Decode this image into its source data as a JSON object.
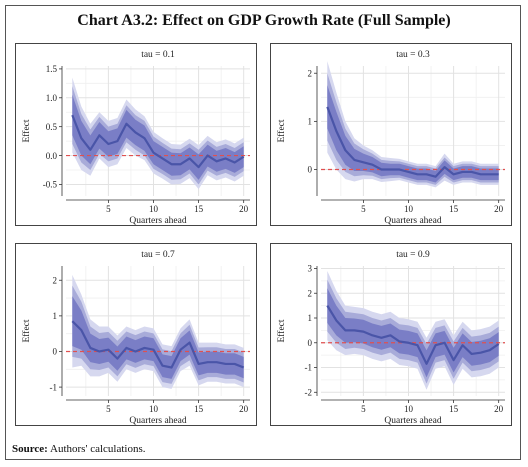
{
  "title": "Chart A3.2: Effect on GDP Growth Rate (Full Sample)",
  "source_label": "Source:",
  "source_text": "Authors' calculations.",
  "colors": {
    "median": "#4a55a8",
    "band_outer": "#d6d8ef",
    "band_mid": "#a8abd9",
    "band_inner": "#7a7ec6",
    "zero_line": "#e05050"
  },
  "chart_data": [
    {
      "type": "line",
      "title": "tau = 0.1",
      "xlabel": "Quarters ahead",
      "ylabel": "Effect",
      "xlim": [
        0.3,
        20.7
      ],
      "ylim": [
        -0.7,
        1.55
      ],
      "xticks": [
        5,
        10,
        15,
        20
      ],
      "yticks": [
        -0.5,
        0.0,
        0.5,
        1.0,
        1.5
      ],
      "ytick_labels": [
        "-0.5",
        "0.0",
        "0.5",
        "1.0",
        "1.5"
      ],
      "grid": true,
      "x": [
        1,
        2,
        3,
        4,
        5,
        6,
        7,
        8,
        9,
        10,
        11,
        12,
        13,
        14,
        15,
        16,
        17,
        18,
        19,
        20
      ],
      "median": [
        0.7,
        0.3,
        0.1,
        0.35,
        0.2,
        0.25,
        0.55,
        0.4,
        0.3,
        0.05,
        -0.05,
        -0.15,
        -0.15,
        -0.05,
        -0.2,
        0.0,
        -0.1,
        -0.05,
        -0.12,
        -0.02
      ],
      "band_width": [
        [
          0.65,
          0.5,
          0.35
        ],
        [
          0.55,
          0.42,
          0.3
        ],
        [
          0.45,
          0.35,
          0.25
        ],
        [
          0.4,
          0.32,
          0.23
        ],
        [
          0.4,
          0.3,
          0.22
        ],
        [
          0.4,
          0.3,
          0.22
        ],
        [
          0.42,
          0.32,
          0.24
        ],
        [
          0.4,
          0.3,
          0.22
        ],
        [
          0.38,
          0.3,
          0.22
        ],
        [
          0.36,
          0.28,
          0.2
        ],
        [
          0.35,
          0.27,
          0.2
        ],
        [
          0.35,
          0.27,
          0.2
        ],
        [
          0.34,
          0.26,
          0.19
        ],
        [
          0.34,
          0.26,
          0.19
        ],
        [
          0.38,
          0.3,
          0.22
        ],
        [
          0.34,
          0.26,
          0.19
        ],
        [
          0.33,
          0.25,
          0.18
        ],
        [
          0.33,
          0.25,
          0.18
        ],
        [
          0.33,
          0.25,
          0.18
        ],
        [
          0.33,
          0.25,
          0.18
        ]
      ]
    },
    {
      "type": "line",
      "title": "tau = 0.3",
      "xlabel": "Quarters ahead",
      "ylabel": "Effect",
      "xlim": [
        0.3,
        20.7
      ],
      "ylim": [
        -0.55,
        2.15
      ],
      "xticks": [
        5,
        10,
        15,
        20
      ],
      "yticks": [
        0,
        1,
        2
      ],
      "ytick_labels": [
        "0",
        "1",
        "2"
      ],
      "grid": true,
      "x": [
        1,
        2,
        3,
        4,
        5,
        6,
        7,
        8,
        9,
        10,
        11,
        12,
        13,
        14,
        15,
        16,
        17,
        18,
        19,
        20
      ],
      "median": [
        1.3,
        0.8,
        0.4,
        0.2,
        0.15,
        0.1,
        0.0,
        0.0,
        0.0,
        -0.05,
        -0.1,
        -0.1,
        -0.15,
        0.05,
        -0.1,
        -0.05,
        -0.05,
        -0.1,
        -0.1,
        -0.1
      ],
      "band_width": [
        [
          0.95,
          0.7,
          0.45
        ],
        [
          0.8,
          0.6,
          0.4
        ],
        [
          0.6,
          0.45,
          0.3
        ],
        [
          0.45,
          0.34,
          0.23
        ],
        [
          0.35,
          0.27,
          0.18
        ],
        [
          0.3,
          0.23,
          0.16
        ],
        [
          0.26,
          0.2,
          0.14
        ],
        [
          0.24,
          0.18,
          0.12
        ],
        [
          0.22,
          0.17,
          0.12
        ],
        [
          0.22,
          0.17,
          0.12
        ],
        [
          0.22,
          0.17,
          0.12
        ],
        [
          0.22,
          0.17,
          0.12
        ],
        [
          0.22,
          0.17,
          0.12
        ],
        [
          0.28,
          0.2,
          0.14
        ],
        [
          0.22,
          0.17,
          0.12
        ],
        [
          0.22,
          0.17,
          0.12
        ],
        [
          0.22,
          0.17,
          0.12
        ],
        [
          0.22,
          0.17,
          0.12
        ],
        [
          0.22,
          0.17,
          0.12
        ],
        [
          0.22,
          0.17,
          0.12
        ]
      ]
    },
    {
      "type": "line",
      "title": "tau = 0.7",
      "xlabel": "Quarters ahead",
      "ylabel": "Effect",
      "xlim": [
        0.3,
        20.7
      ],
      "ylim": [
        -1.25,
        2.4
      ],
      "xticks": [
        5,
        10,
        15,
        20
      ],
      "yticks": [
        -1,
        0,
        1,
        2
      ],
      "ytick_labels": [
        "-1",
        "0",
        "1",
        "2"
      ],
      "grid": true,
      "x": [
        1,
        2,
        3,
        4,
        5,
        6,
        7,
        8,
        9,
        10,
        11,
        12,
        13,
        14,
        15,
        16,
        17,
        18,
        19,
        20
      ],
      "median": [
        0.85,
        0.6,
        0.1,
        0.0,
        0.05,
        -0.2,
        0.1,
        0.0,
        0.1,
        0.05,
        -0.4,
        -0.45,
        0.05,
        0.25,
        -0.35,
        -0.3,
        -0.3,
        -0.35,
        -0.35,
        -0.45
      ],
      "band_width": [
        [
          1.3,
          1.0,
          0.7
        ],
        [
          1.0,
          0.8,
          0.55
        ],
        [
          0.8,
          0.6,
          0.4
        ],
        [
          0.7,
          0.52,
          0.35
        ],
        [
          0.65,
          0.5,
          0.34
        ],
        [
          0.65,
          0.5,
          0.34
        ],
        [
          0.6,
          0.46,
          0.32
        ],
        [
          0.6,
          0.46,
          0.32
        ],
        [
          0.6,
          0.46,
          0.32
        ],
        [
          0.6,
          0.46,
          0.32
        ],
        [
          0.6,
          0.46,
          0.32
        ],
        [
          0.6,
          0.46,
          0.32
        ],
        [
          0.6,
          0.46,
          0.32
        ],
        [
          0.65,
          0.5,
          0.34
        ],
        [
          0.6,
          0.46,
          0.32
        ],
        [
          0.55,
          0.42,
          0.3
        ],
        [
          0.55,
          0.42,
          0.3
        ],
        [
          0.55,
          0.42,
          0.3
        ],
        [
          0.55,
          0.42,
          0.3
        ],
        [
          0.55,
          0.42,
          0.3
        ]
      ]
    },
    {
      "type": "line",
      "title": "tau = 0.9",
      "xlabel": "Quarters ahead",
      "ylabel": "Effect",
      "xlim": [
        0.3,
        20.7
      ],
      "ylim": [
        -2.15,
        3.1
      ],
      "xticks": [
        5,
        10,
        15,
        20
      ],
      "yticks": [
        -2,
        -1,
        0,
        1,
        2,
        3
      ],
      "ytick_labels": [
        "-2",
        "-1",
        "0",
        "1",
        "2",
        "3"
      ],
      "grid": true,
      "x": [
        1,
        2,
        3,
        4,
        5,
        6,
        7,
        8,
        9,
        10,
        11,
        12,
        13,
        14,
        15,
        16,
        17,
        18,
        19,
        20
      ],
      "median": [
        1.5,
        0.9,
        0.5,
        0.5,
        0.45,
        0.3,
        0.2,
        0.3,
        0.05,
        0.0,
        -0.1,
        -0.85,
        -0.1,
        0.0,
        -0.7,
        -0.1,
        -0.45,
        -0.4,
        -0.3,
        -0.05
      ],
      "band_width": [
        [
          1.4,
          1.05,
          0.7
        ],
        [
          1.2,
          0.9,
          0.6
        ],
        [
          1.0,
          0.75,
          0.5
        ],
        [
          0.95,
          0.7,
          0.48
        ],
        [
          0.95,
          0.7,
          0.48
        ],
        [
          0.95,
          0.7,
          0.48
        ],
        [
          0.95,
          0.7,
          0.48
        ],
        [
          0.95,
          0.7,
          0.48
        ],
        [
          0.95,
          0.7,
          0.48
        ],
        [
          0.95,
          0.7,
          0.48
        ],
        [
          0.95,
          0.7,
          0.48
        ],
        [
          1.05,
          0.8,
          0.55
        ],
        [
          0.95,
          0.7,
          0.48
        ],
        [
          0.95,
          0.7,
          0.48
        ],
        [
          1.0,
          0.75,
          0.5
        ],
        [
          0.95,
          0.7,
          0.48
        ],
        [
          0.95,
          0.7,
          0.48
        ],
        [
          0.95,
          0.7,
          0.48
        ],
        [
          0.95,
          0.7,
          0.48
        ],
        [
          0.95,
          0.7,
          0.48
        ]
      ]
    }
  ]
}
